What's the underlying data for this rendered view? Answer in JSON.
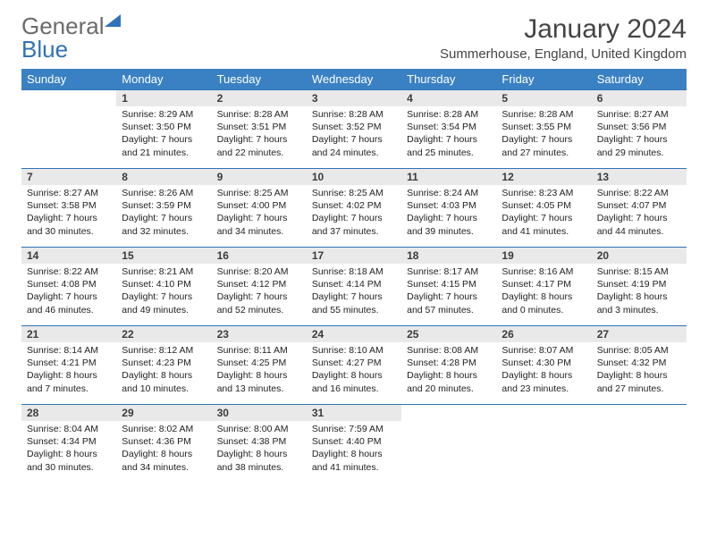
{
  "brand": {
    "gray": "General",
    "blue": "Blue"
  },
  "title": "January 2024",
  "location": "Summerhouse, England, United Kingdom",
  "colors": {
    "header_bg": "#3a81c4",
    "header_fg": "#ffffff",
    "row_border": "#2f72b8",
    "daynum_bg": "#e9e9e9",
    "brand_gray": "#6b6b6b",
    "brand_blue": "#2f72b8",
    "page_bg": "#ffffff"
  },
  "fonts": {
    "title_size_pt": 22,
    "location_size_pt": 11,
    "dayhead_size_pt": 10,
    "daynum_size_pt": 9,
    "cell_size_pt": 8
  },
  "dayHeaders": [
    "Sunday",
    "Monday",
    "Tuesday",
    "Wednesday",
    "Thursday",
    "Friday",
    "Saturday"
  ],
  "weeks": [
    [
      null,
      {
        "n": "1",
        "sr": "8:29 AM",
        "ss": "3:50 PM",
        "dl": "7 hours and 21 minutes."
      },
      {
        "n": "2",
        "sr": "8:28 AM",
        "ss": "3:51 PM",
        "dl": "7 hours and 22 minutes."
      },
      {
        "n": "3",
        "sr": "8:28 AM",
        "ss": "3:52 PM",
        "dl": "7 hours and 24 minutes."
      },
      {
        "n": "4",
        "sr": "8:28 AM",
        "ss": "3:54 PM",
        "dl": "7 hours and 25 minutes."
      },
      {
        "n": "5",
        "sr": "8:28 AM",
        "ss": "3:55 PM",
        "dl": "7 hours and 27 minutes."
      },
      {
        "n": "6",
        "sr": "8:27 AM",
        "ss": "3:56 PM",
        "dl": "7 hours and 29 minutes."
      }
    ],
    [
      {
        "n": "7",
        "sr": "8:27 AM",
        "ss": "3:58 PM",
        "dl": "7 hours and 30 minutes."
      },
      {
        "n": "8",
        "sr": "8:26 AM",
        "ss": "3:59 PM",
        "dl": "7 hours and 32 minutes."
      },
      {
        "n": "9",
        "sr": "8:25 AM",
        "ss": "4:00 PM",
        "dl": "7 hours and 34 minutes."
      },
      {
        "n": "10",
        "sr": "8:25 AM",
        "ss": "4:02 PM",
        "dl": "7 hours and 37 minutes."
      },
      {
        "n": "11",
        "sr": "8:24 AM",
        "ss": "4:03 PM",
        "dl": "7 hours and 39 minutes."
      },
      {
        "n": "12",
        "sr": "8:23 AM",
        "ss": "4:05 PM",
        "dl": "7 hours and 41 minutes."
      },
      {
        "n": "13",
        "sr": "8:22 AM",
        "ss": "4:07 PM",
        "dl": "7 hours and 44 minutes."
      }
    ],
    [
      {
        "n": "14",
        "sr": "8:22 AM",
        "ss": "4:08 PM",
        "dl": "7 hours and 46 minutes."
      },
      {
        "n": "15",
        "sr": "8:21 AM",
        "ss": "4:10 PM",
        "dl": "7 hours and 49 minutes."
      },
      {
        "n": "16",
        "sr": "8:20 AM",
        "ss": "4:12 PM",
        "dl": "7 hours and 52 minutes."
      },
      {
        "n": "17",
        "sr": "8:18 AM",
        "ss": "4:14 PM",
        "dl": "7 hours and 55 minutes."
      },
      {
        "n": "18",
        "sr": "8:17 AM",
        "ss": "4:15 PM",
        "dl": "7 hours and 57 minutes."
      },
      {
        "n": "19",
        "sr": "8:16 AM",
        "ss": "4:17 PM",
        "dl": "8 hours and 0 minutes."
      },
      {
        "n": "20",
        "sr": "8:15 AM",
        "ss": "4:19 PM",
        "dl": "8 hours and 3 minutes."
      }
    ],
    [
      {
        "n": "21",
        "sr": "8:14 AM",
        "ss": "4:21 PM",
        "dl": "8 hours and 7 minutes."
      },
      {
        "n": "22",
        "sr": "8:12 AM",
        "ss": "4:23 PM",
        "dl": "8 hours and 10 minutes."
      },
      {
        "n": "23",
        "sr": "8:11 AM",
        "ss": "4:25 PM",
        "dl": "8 hours and 13 minutes."
      },
      {
        "n": "24",
        "sr": "8:10 AM",
        "ss": "4:27 PM",
        "dl": "8 hours and 16 minutes."
      },
      {
        "n": "25",
        "sr": "8:08 AM",
        "ss": "4:28 PM",
        "dl": "8 hours and 20 minutes."
      },
      {
        "n": "26",
        "sr": "8:07 AM",
        "ss": "4:30 PM",
        "dl": "8 hours and 23 minutes."
      },
      {
        "n": "27",
        "sr": "8:05 AM",
        "ss": "4:32 PM",
        "dl": "8 hours and 27 minutes."
      }
    ],
    [
      {
        "n": "28",
        "sr": "8:04 AM",
        "ss": "4:34 PM",
        "dl": "8 hours and 30 minutes."
      },
      {
        "n": "29",
        "sr": "8:02 AM",
        "ss": "4:36 PM",
        "dl": "8 hours and 34 minutes."
      },
      {
        "n": "30",
        "sr": "8:00 AM",
        "ss": "4:38 PM",
        "dl": "8 hours and 38 minutes."
      },
      {
        "n": "31",
        "sr": "7:59 AM",
        "ss": "4:40 PM",
        "dl": "8 hours and 41 minutes."
      },
      null,
      null,
      null
    ]
  ],
  "labels": {
    "sunrise": "Sunrise:",
    "sunset": "Sunset:",
    "daylight": "Daylight:"
  }
}
